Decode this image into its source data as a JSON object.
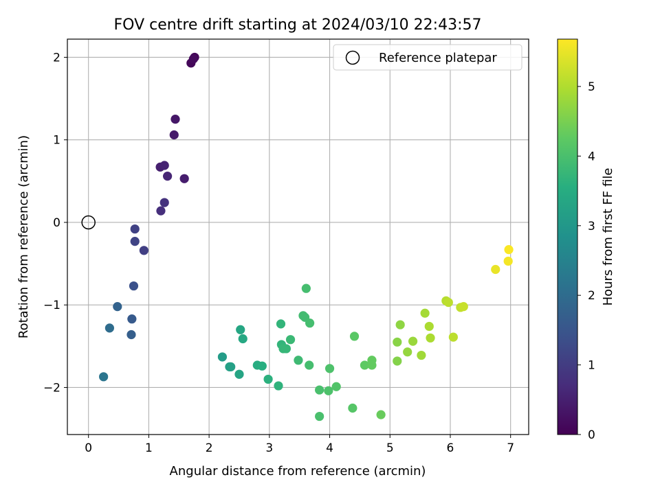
{
  "chart_data": {
    "type": "scatter",
    "title": "FOV centre drift starting at 2024/03/10 22:43:57",
    "xlabel": "Angular distance from reference (arcmin)",
    "ylabel": "Rotation from reference (arcmin)",
    "xlim": [
      -0.35,
      7.3
    ],
    "ylim": [
      -2.57,
      2.22
    ],
    "xticks": [
      0,
      1,
      2,
      3,
      4,
      5,
      6,
      7
    ],
    "yticks": [
      -2,
      -1,
      0,
      1,
      2
    ],
    "grid": true,
    "legend": {
      "placement": "upper right",
      "entries": [
        "Reference platepar"
      ]
    },
    "colorbar": {
      "label": "Hours from first FF file",
      "range": [
        0,
        5.68
      ],
      "ticks": [
        0,
        1,
        2,
        3,
        4,
        5
      ],
      "colormap": "viridis"
    },
    "reference_point": {
      "name": "Reference platepar",
      "x": 0,
      "y": 0
    },
    "series": [
      {
        "points": [
          {
            "x": 1.76,
            "y": 2.0,
            "c": 0.05
          },
          {
            "x": 1.7,
            "y": 1.93,
            "c": 0.1
          },
          {
            "x": 1.74,
            "y": 1.98,
            "c": 0.15
          },
          {
            "x": 1.44,
            "y": 1.25,
            "c": 0.35
          },
          {
            "x": 1.42,
            "y": 1.06,
            "c": 0.4
          },
          {
            "x": 1.19,
            "y": 0.67,
            "c": 0.5
          },
          {
            "x": 1.26,
            "y": 0.69,
            "c": 0.55
          },
          {
            "x": 1.31,
            "y": 0.56,
            "c": 0.6
          },
          {
            "x": 1.59,
            "y": 0.53,
            "c": 0.45
          },
          {
            "x": 1.26,
            "y": 0.24,
            "c": 0.8
          },
          {
            "x": 1.2,
            "y": 0.14,
            "c": 0.75
          },
          {
            "x": 0.77,
            "y": -0.08,
            "c": 1.1
          },
          {
            "x": 0.77,
            "y": -0.23,
            "c": 1.15
          },
          {
            "x": 0.92,
            "y": -0.34,
            "c": 1.05
          },
          {
            "x": 0.75,
            "y": -0.77,
            "c": 1.4
          },
          {
            "x": 0.72,
            "y": -1.17,
            "c": 1.6
          },
          {
            "x": 0.48,
            "y": -1.02,
            "c": 1.8
          },
          {
            "x": 0.71,
            "y": -1.36,
            "c": 1.7
          },
          {
            "x": 0.35,
            "y": -1.28,
            "c": 2.0
          },
          {
            "x": 0.25,
            "y": -1.87,
            "c": 2.2
          },
          {
            "x": 2.22,
            "y": -1.63,
            "c": 3.1
          },
          {
            "x": 2.34,
            "y": -1.75,
            "c": 3.2
          },
          {
            "x": 2.36,
            "y": -1.75,
            "c": 3.2
          },
          {
            "x": 2.5,
            "y": -1.84,
            "c": 3.3
          },
          {
            "x": 2.52,
            "y": -1.3,
            "c": 3.35
          },
          {
            "x": 2.56,
            "y": -1.41,
            "c": 3.4
          },
          {
            "x": 2.8,
            "y": -1.73,
            "c": 3.5
          },
          {
            "x": 2.88,
            "y": -1.74,
            "c": 3.55
          },
          {
            "x": 2.98,
            "y": -1.9,
            "c": 3.6
          },
          {
            "x": 3.15,
            "y": -1.98,
            "c": 3.65
          },
          {
            "x": 3.19,
            "y": -1.23,
            "c": 3.7
          },
          {
            "x": 3.2,
            "y": -1.48,
            "c": 3.7
          },
          {
            "x": 3.23,
            "y": -1.53,
            "c": 3.75
          },
          {
            "x": 3.28,
            "y": -1.53,
            "c": 3.75
          },
          {
            "x": 3.35,
            "y": -1.42,
            "c": 3.8
          },
          {
            "x": 3.48,
            "y": -1.67,
            "c": 3.85
          },
          {
            "x": 3.56,
            "y": -1.13,
            "c": 3.9
          },
          {
            "x": 3.59,
            "y": -1.15,
            "c": 3.9
          },
          {
            "x": 3.61,
            "y": -0.8,
            "c": 3.95
          },
          {
            "x": 3.67,
            "y": -1.22,
            "c": 3.95
          },
          {
            "x": 3.66,
            "y": -1.73,
            "c": 3.95
          },
          {
            "x": 3.83,
            "y": -2.03,
            "c": 4.0
          },
          {
            "x": 3.83,
            "y": -2.35,
            "c": 4.0
          },
          {
            "x": 3.98,
            "y": -2.04,
            "c": 4.05
          },
          {
            "x": 4.0,
            "y": -1.77,
            "c": 4.05
          },
          {
            "x": 4.11,
            "y": -1.99,
            "c": 4.1
          },
          {
            "x": 4.38,
            "y": -2.25,
            "c": 4.15
          },
          {
            "x": 4.41,
            "y": -1.38,
            "c": 4.2
          },
          {
            "x": 4.58,
            "y": -1.73,
            "c": 4.25
          },
          {
            "x": 4.7,
            "y": -1.67,
            "c": 4.3
          },
          {
            "x": 4.7,
            "y": -1.73,
            "c": 4.3
          },
          {
            "x": 4.85,
            "y": -2.33,
            "c": 4.35
          },
          {
            "x": 5.12,
            "y": -1.68,
            "c": 4.6
          },
          {
            "x": 5.12,
            "y": -1.45,
            "c": 4.65
          },
          {
            "x": 5.17,
            "y": -1.24,
            "c": 4.7
          },
          {
            "x": 5.29,
            "y": -1.57,
            "c": 4.75
          },
          {
            "x": 5.38,
            "y": -1.44,
            "c": 4.8
          },
          {
            "x": 5.52,
            "y": -1.61,
            "c": 4.85
          },
          {
            "x": 5.58,
            "y": -1.1,
            "c": 4.9
          },
          {
            "x": 5.65,
            "y": -1.26,
            "c": 4.95
          },
          {
            "x": 5.67,
            "y": -1.4,
            "c": 4.95
          },
          {
            "x": 5.93,
            "y": -0.95,
            "c": 5.05
          },
          {
            "x": 5.97,
            "y": -0.97,
            "c": 5.1
          },
          {
            "x": 6.05,
            "y": -1.39,
            "c": 5.1
          },
          {
            "x": 6.17,
            "y": -1.03,
            "c": 5.15
          },
          {
            "x": 6.22,
            "y": -1.02,
            "c": 5.2
          },
          {
            "x": 6.75,
            "y": -0.57,
            "c": 5.5
          },
          {
            "x": 6.96,
            "y": -0.47,
            "c": 5.6
          },
          {
            "x": 6.97,
            "y": -0.33,
            "c": 5.65
          }
        ]
      }
    ]
  }
}
